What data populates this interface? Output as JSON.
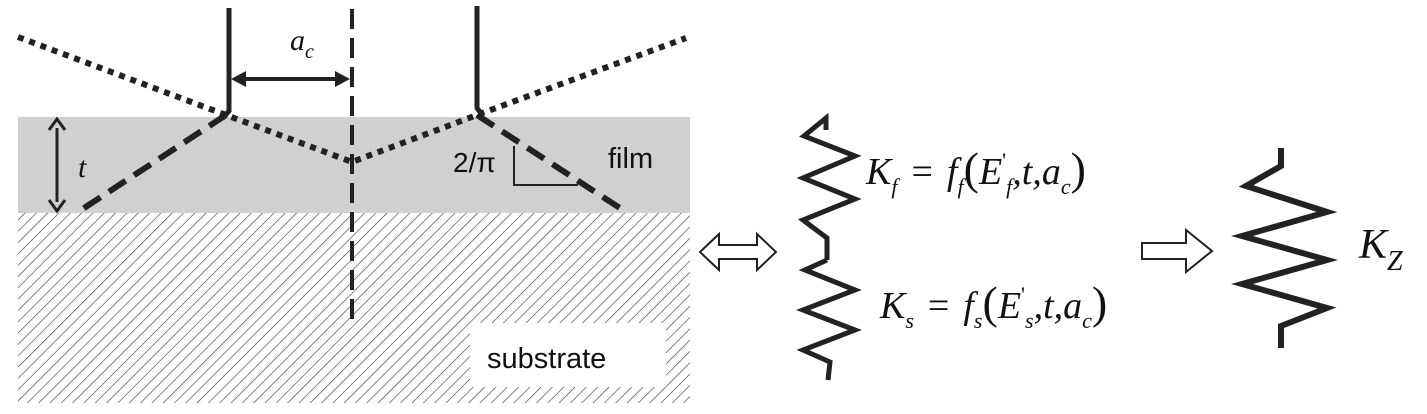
{
  "left_panel": {
    "label_ac": "a",
    "label_ac_sub": "c",
    "label_t": "t",
    "label_slope": "2/π",
    "label_film": "film",
    "label_substrate": "substrate"
  },
  "middle_panel": {
    "kf_equation": {
      "K": "K",
      "K_sub": "f",
      "eq": "=",
      "f": "f",
      "f_sub": "f",
      "lparen": "(",
      "E": "E",
      "E_sup": "'",
      "E_sub": "f",
      "comma_t": ",t,",
      "a": "a",
      "a_sub": "c",
      "rparen": ")"
    },
    "ks_equation": {
      "K": "K",
      "K_sub": "s",
      "eq": "=",
      "f": "f",
      "f_sub": "s",
      "lparen": "(",
      "E": "E",
      "E_sup": "'",
      "E_sub": "s",
      "comma_t": ",t,",
      "a": "a",
      "a_sub": "c",
      "rparen": ")"
    }
  },
  "right_panel": {
    "kz_label": "K",
    "kz_sub": "Z"
  }
}
